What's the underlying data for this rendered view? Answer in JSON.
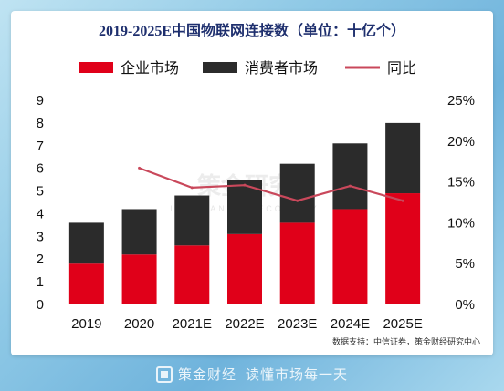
{
  "chart_data": {
    "type": "bar",
    "title": "2019-2025E中国物联网连接数（单位：十亿个）",
    "categories": [
      "2019",
      "2020",
      "2021E",
      "2022E",
      "2023E",
      "2024E",
      "2025E"
    ],
    "series": [
      {
        "name": "企业市场",
        "values": [
          1.8,
          2.2,
          2.6,
          3.1,
          3.6,
          4.2,
          4.9
        ],
        "color": "#e00019",
        "kind": "stacked-bar"
      },
      {
        "name": "消费者市场",
        "values": [
          1.8,
          2.0,
          2.2,
          2.4,
          2.6,
          2.9,
          3.1
        ],
        "color": "#2b2b2b",
        "kind": "stacked-bar"
      },
      {
        "name": "同比",
        "values": [
          null,
          0.167,
          0.143,
          0.146,
          0.127,
          0.145,
          0.127
        ],
        "color": "#c9485b",
        "kind": "line",
        "axis": "right"
      }
    ],
    "ylim_left": [
      0,
      9
    ],
    "yticks_left": [
      "0",
      "1",
      "2",
      "3",
      "4",
      "5",
      "6",
      "7",
      "8",
      "9"
    ],
    "ylim_right": [
      0,
      0.25
    ],
    "yticks_right": [
      "0%",
      "5%",
      "10%",
      "15%",
      "20%",
      "25%"
    ],
    "legend_position": "top"
  },
  "source_note": "数据支持：中信证券，策金财经研究中心",
  "watermark": {
    "text": "策金研究",
    "sub": "IN FINANCE RECONOMY"
  },
  "footer": {
    "brand": "策金财经",
    "slogan": "读懂市场每一天"
  }
}
